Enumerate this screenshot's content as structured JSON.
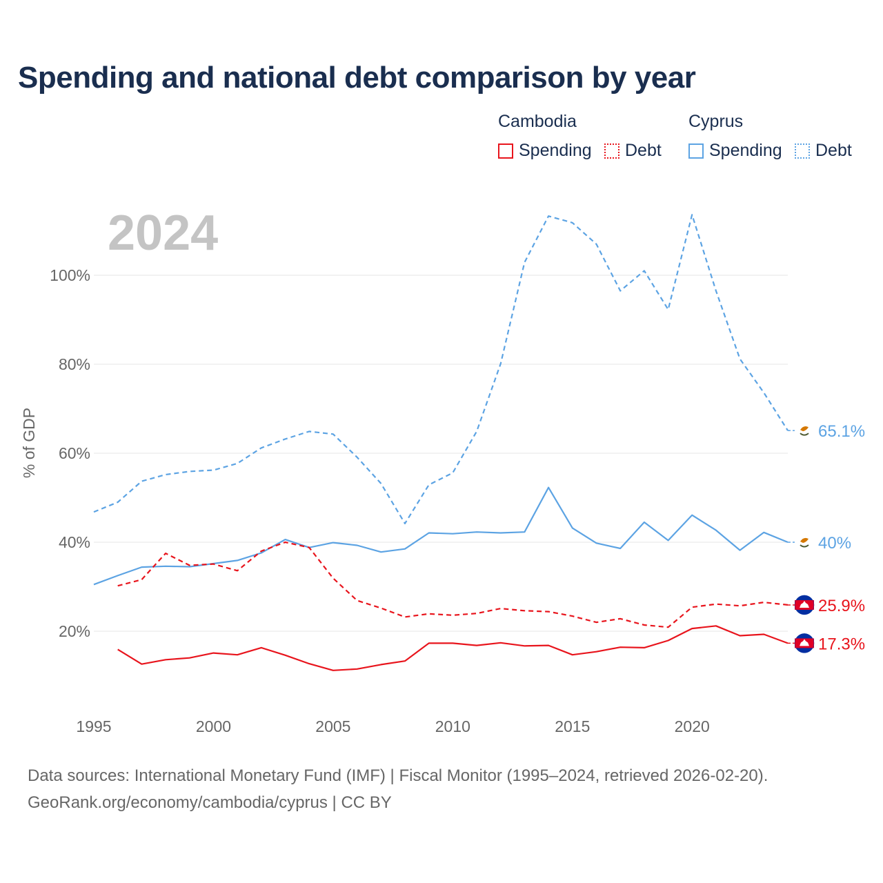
{
  "title": "Spending and national debt comparison by year",
  "legend": {
    "groups": [
      {
        "country": "Cambodia",
        "spending": "Spending",
        "debt": "Debt",
        "color": "#e8141c"
      },
      {
        "country": "Cyprus",
        "spending": "Spending",
        "debt": "Debt",
        "color": "#5ca3e3"
      }
    ]
  },
  "year_label": "2024",
  "source": {
    "line1": "Data sources: International Monetary Fund (IMF) | Fiscal Monitor (1995–2024, retrieved 2026-02-20).",
    "line2": "GeoRank.org/economy/cambodia/cyprus | CC BY"
  },
  "chart_data": {
    "type": "line",
    "title": "Spending and national debt comparison by year",
    "xlabel": "",
    "ylabel": "% of GDP",
    "xlim": [
      1995,
      2024
    ],
    "ylim": [
      2,
      118
    ],
    "x_ticks": [
      1995,
      2000,
      2005,
      2010,
      2015,
      2020
    ],
    "y_ticks": [
      20,
      40,
      60,
      80,
      100
    ],
    "y_tick_labels": [
      "20%",
      "40%",
      "60%",
      "80%",
      "100%"
    ],
    "grid": true,
    "series": [
      {
        "name": "Cyprus Debt",
        "country": "Cyprus",
        "kind": "Debt",
        "color": "#5ca3e3",
        "dash": true,
        "label": "65.1%",
        "points": [
          [
            1995,
            46.8
          ],
          [
            1996,
            49
          ],
          [
            1997,
            53.7
          ],
          [
            1998,
            55.2
          ],
          [
            1999,
            55.9
          ],
          [
            2000,
            56.2
          ],
          [
            2001,
            57.7
          ],
          [
            2002,
            61.2
          ],
          [
            2003,
            63.2
          ],
          [
            2004,
            64.9
          ],
          [
            2005,
            64.3
          ],
          [
            2006,
            59.1
          ],
          [
            2007,
            53.2
          ],
          [
            2008,
            44.2
          ],
          [
            2009,
            52.9
          ],
          [
            2010,
            55.6
          ],
          [
            2011,
            64.9
          ],
          [
            2012,
            80.1
          ],
          [
            2013,
            102.9
          ],
          [
            2014,
            113.3
          ],
          [
            2015,
            111.8
          ],
          [
            2016,
            107
          ],
          [
            2017,
            96.5
          ],
          [
            2018,
            101
          ],
          [
            2019,
            92.3
          ],
          [
            2020,
            113.6
          ],
          [
            2021,
            96.5
          ],
          [
            2022,
            81.2
          ],
          [
            2023,
            73.6
          ],
          [
            2024,
            65.1
          ]
        ]
      },
      {
        "name": "Cyprus Spending",
        "country": "Cyprus",
        "kind": "Spending",
        "color": "#5ca3e3",
        "dash": false,
        "label": "40%",
        "points": [
          [
            1995,
            30.5
          ],
          [
            1996,
            32.5
          ],
          [
            1997,
            34.4
          ],
          [
            1998,
            34.6
          ],
          [
            1999,
            34.5
          ],
          [
            2000,
            35.2
          ],
          [
            2001,
            35.9
          ],
          [
            2002,
            37.6
          ],
          [
            2003,
            40.6
          ],
          [
            2004,
            38.8
          ],
          [
            2005,
            39.9
          ],
          [
            2006,
            39.3
          ],
          [
            2007,
            37.8
          ],
          [
            2008,
            38.5
          ],
          [
            2009,
            42.1
          ],
          [
            2010,
            41.9
          ],
          [
            2011,
            42.3
          ],
          [
            2012,
            42.1
          ],
          [
            2013,
            42.3
          ],
          [
            2014,
            52.3
          ],
          [
            2015,
            43.2
          ],
          [
            2016,
            39.8
          ],
          [
            2017,
            38.6
          ],
          [
            2018,
            44.5
          ],
          [
            2019,
            40.4
          ],
          [
            2020,
            46.1
          ],
          [
            2021,
            42.7
          ],
          [
            2022,
            38.2
          ],
          [
            2023,
            42.2
          ],
          [
            2024,
            40
          ]
        ]
      },
      {
        "name": "Cambodia Debt",
        "country": "Cambodia",
        "kind": "Debt",
        "color": "#e8141c",
        "dash": true,
        "label": "25.9%",
        "points": [
          [
            1996,
            30.2
          ],
          [
            1997,
            31.6
          ],
          [
            1998,
            37.5
          ],
          [
            1999,
            34.8
          ],
          [
            2000,
            35.1
          ],
          [
            2001,
            33.6
          ],
          [
            2002,
            38
          ],
          [
            2003,
            40
          ],
          [
            2004,
            38.8
          ],
          [
            2005,
            31.9
          ],
          [
            2006,
            26.9
          ],
          [
            2007,
            25.2
          ],
          [
            2008,
            23.2
          ],
          [
            2009,
            23.9
          ],
          [
            2010,
            23.6
          ],
          [
            2011,
            24
          ],
          [
            2012,
            25.1
          ],
          [
            2013,
            24.6
          ],
          [
            2014,
            24.4
          ],
          [
            2015,
            23.4
          ],
          [
            2016,
            22
          ],
          [
            2017,
            22.8
          ],
          [
            2018,
            21.4
          ],
          [
            2019,
            20.9
          ],
          [
            2020,
            25.4
          ],
          [
            2021,
            26.1
          ],
          [
            2022,
            25.7
          ],
          [
            2023,
            26.5
          ],
          [
            2024,
            25.9
          ]
        ]
      },
      {
        "name": "Cambodia Spending",
        "country": "Cambodia",
        "kind": "Spending",
        "color": "#e8141c",
        "dash": false,
        "label": "17.3%",
        "points": [
          [
            1996,
            15.9
          ],
          [
            1997,
            12.6
          ],
          [
            1998,
            13.6
          ],
          [
            1999,
            14
          ],
          [
            2000,
            15.1
          ],
          [
            2001,
            14.7
          ],
          [
            2002,
            16.3
          ],
          [
            2003,
            14.6
          ],
          [
            2004,
            12.7
          ],
          [
            2005,
            11.2
          ],
          [
            2006,
            11.5
          ],
          [
            2007,
            12.5
          ],
          [
            2008,
            13.3
          ],
          [
            2009,
            17.3
          ],
          [
            2010,
            17.3
          ],
          [
            2011,
            16.8
          ],
          [
            2012,
            17.4
          ],
          [
            2013,
            16.7
          ],
          [
            2014,
            16.8
          ],
          [
            2015,
            14.7
          ],
          [
            2016,
            15.4
          ],
          [
            2017,
            16.4
          ],
          [
            2018,
            16.3
          ],
          [
            2019,
            17.9
          ],
          [
            2020,
            20.6
          ],
          [
            2021,
            21.2
          ],
          [
            2022,
            19
          ],
          [
            2023,
            19.3
          ],
          [
            2024,
            17.3
          ]
        ]
      }
    ]
  }
}
